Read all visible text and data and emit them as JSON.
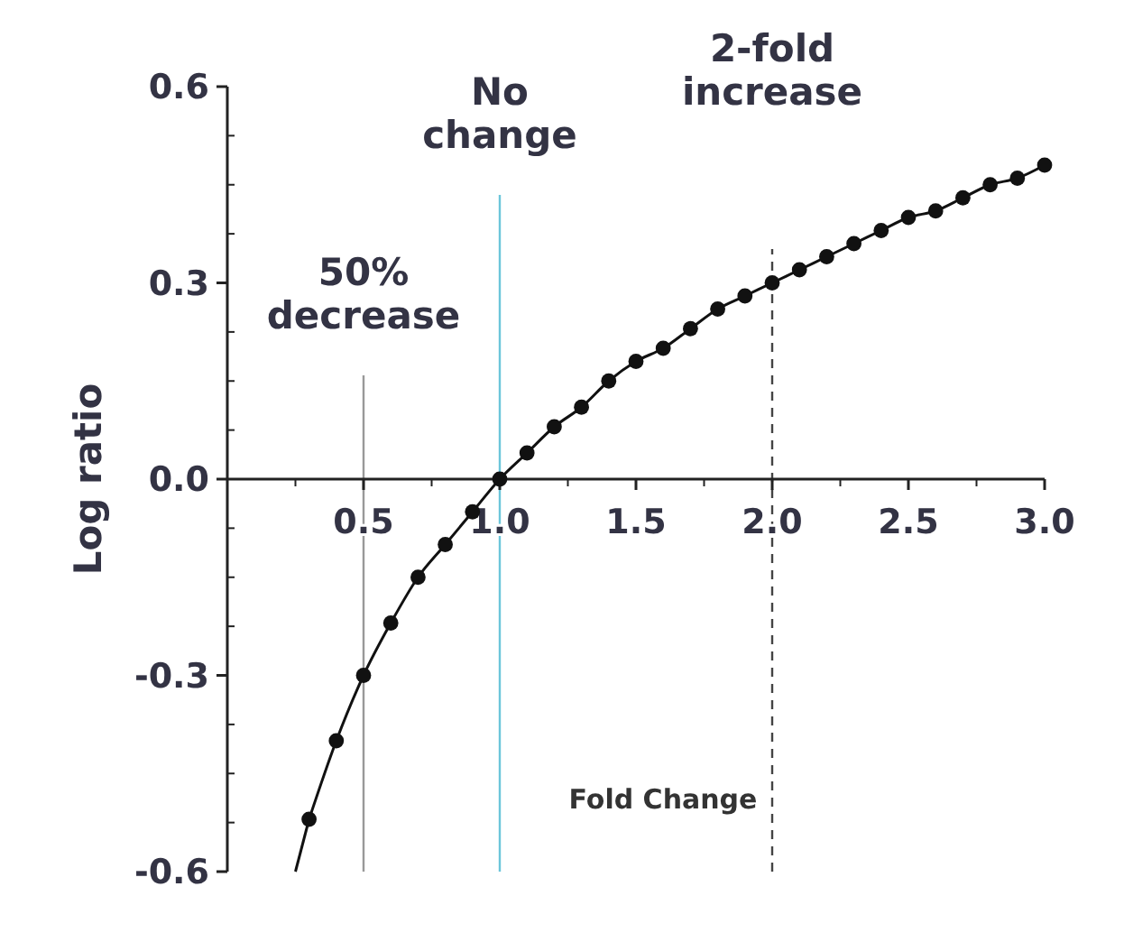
{
  "chart_data": {
    "type": "line",
    "xlabel": "Fold Change",
    "ylabel": "Log ratio",
    "xlim": [
      0,
      3.0
    ],
    "ylim": [
      -0.6,
      0.6
    ],
    "xticks": [
      {
        "value": 0.5,
        "label": "0.5"
      },
      {
        "value": 1,
        "label": "1.0"
      },
      {
        "value": 1.5,
        "label": "1.5"
      },
      {
        "value": 2,
        "label": "2.0"
      },
      {
        "value": 2.5,
        "label": "2.5"
      },
      {
        "value": 3,
        "label": "3.0"
      }
    ],
    "yticks": [
      {
        "value": -0.6,
        "label": "-0.6"
      },
      {
        "value": -0.3,
        "label": "-0.3"
      },
      {
        "value": 0,
        "label": "0.0"
      },
      {
        "value": 0.3,
        "label": "0.3"
      },
      {
        "value": 0.6,
        "label": "0.6"
      }
    ],
    "line_style": "solid",
    "series": [
      {
        "color": "#111111",
        "marker": "circle",
        "x": [
          0.3,
          0.4,
          0.5,
          0.6,
          0.7,
          0.8,
          0.9,
          1.0,
          1.1,
          1.2,
          1.3,
          1.4,
          1.5,
          1.6,
          1.7,
          1.8,
          1.9,
          2.0,
          2.1,
          2.2,
          2.3,
          2.4,
          2.5,
          2.6,
          2.7,
          2.8,
          2.9,
          3.0
        ],
        "values": [
          -0.52,
          -0.4,
          -0.3,
          -0.22,
          -0.15,
          -0.1,
          -0.05,
          0,
          0.04,
          0.08,
          0.11,
          0.15,
          0.18,
          0.2,
          0.23,
          0.26,
          0.28,
          0.3,
          0.32,
          0.34,
          0.36,
          0.38,
          0.4,
          0.41,
          0.43,
          0.45,
          0.46,
          0.48
        ]
      },
      {
        "color": "#111111",
        "marker": "none",
        "x": [
          0.25,
          0.3
        ],
        "values": [
          -0.6,
          -0.52
        ]
      }
    ],
    "ref_lines": [
      {
        "axis": "x",
        "value": 0.5,
        "label": "50%\ndecrease",
        "color": "#999999",
        "line_style": "solid"
      },
      {
        "axis": "x",
        "value": 1.0,
        "label": "No\nchange",
        "color": "#6cc6da",
        "line_style": "solid"
      },
      {
        "axis": "x",
        "value": 2.0,
        "label": "2-fold\nincrease",
        "color": "#444444",
        "line_style": "dashed"
      }
    ]
  }
}
